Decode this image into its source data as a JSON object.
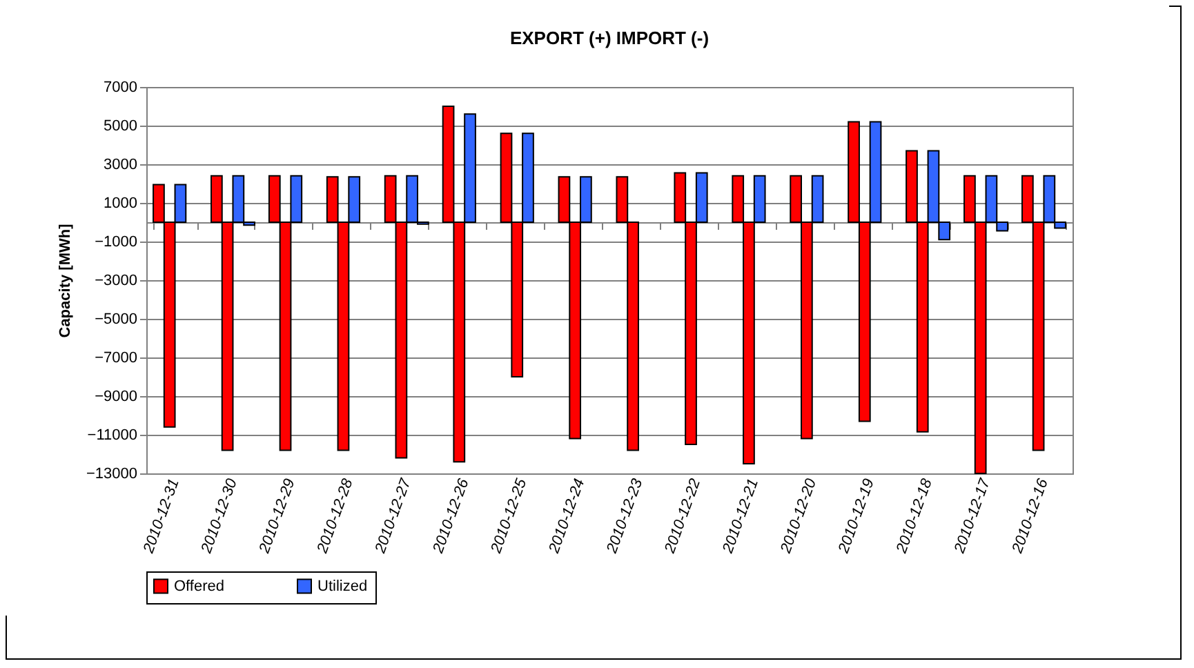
{
  "chart_data": {
    "type": "bar",
    "title": "EXPORT (+)  IMPORT (-)",
    "ylabel": "Capacity [MWh]",
    "categories": [
      "2010-12-31",
      "2010-12-30",
      "2010-12-29",
      "2010-12-28",
      "2010-12-27",
      "2010-12-26",
      "2010-12-25",
      "2010-12-24",
      "2010-12-23",
      "2010-12-22",
      "2010-12-21",
      "2010-12-20",
      "2010-12-19",
      "2010-12-18",
      "2010-12-17",
      "2010-12-16"
    ],
    "series": [
      {
        "name": "Offered",
        "color": "#ff0000",
        "values": [
          1950,
          2400,
          2400,
          2350,
          2400,
          6000,
          4600,
          2350,
          2350,
          2550,
          2400,
          2400,
          5200,
          3700,
          2400,
          2400
        ]
      },
      {
        "color": "#ff0000",
        "values": [
          -10600,
          -11800,
          -11800,
          -11800,
          -12200,
          -12400,
          -8000,
          -11200,
          -11800,
          -11500,
          -12500,
          -11200,
          -10300,
          -10850,
          -13000,
          -11800
        ]
      },
      {
        "name": "Utilized",
        "color": "#3366ff",
        "values": [
          1950,
          2400,
          2400,
          2350,
          2400,
          5600,
          4600,
          2350,
          null,
          2550,
          2400,
          2400,
          5200,
          3700,
          2400,
          2400
        ]
      },
      {
        "color": "#3366ff",
        "values": [
          null,
          -150,
          null,
          null,
          -100,
          null,
          null,
          null,
          null,
          null,
          null,
          null,
          null,
          -900,
          -450,
          -300
        ]
      }
    ],
    "ylim": [
      -13000,
      7000
    ],
    "yticks": [
      -13000,
      -11000,
      -9000,
      -7000,
      -5000,
      -3000,
      -1000,
      1000,
      3000,
      5000,
      7000
    ],
    "grid": "y",
    "legend": "bottom"
  }
}
